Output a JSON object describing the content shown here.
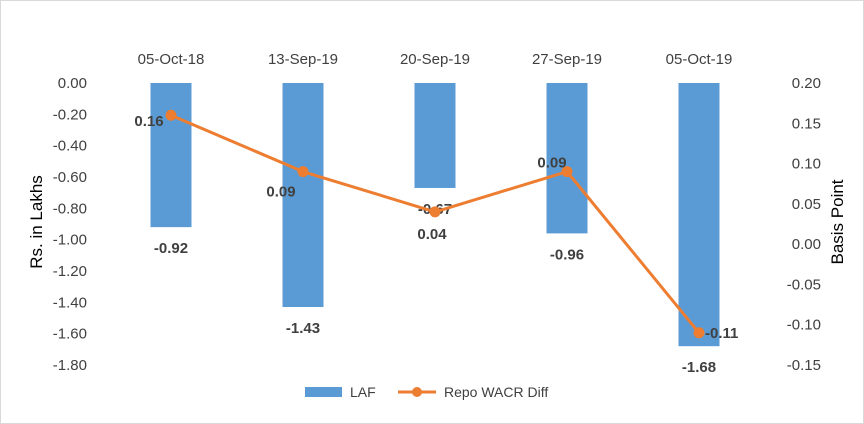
{
  "chart_data": {
    "type": "bar",
    "categories": [
      "05-Oct-18",
      "13-Sep-19",
      "20-Sep-19",
      "27-Sep-19",
      "05-Oct-19"
    ],
    "series": [
      {
        "name": "LAF",
        "type": "bar",
        "axis": "left",
        "values": [
          -0.92,
          -1.43,
          -0.67,
          -0.96,
          -1.68
        ],
        "labels": [
          "-0.92",
          "-1.43",
          "-0.67",
          "-0.96",
          "-1.68"
        ]
      },
      {
        "name": "Repo WACR Diff",
        "type": "line",
        "axis": "right",
        "values": [
          0.16,
          0.09,
          0.04,
          0.09,
          -0.11
        ],
        "labels": [
          "0.16",
          "0.09",
          "0.04",
          "0.09",
          "-0.11"
        ]
      }
    ],
    "ylabel": "Rs. in Lakhs",
    "y2label": "Basis Point",
    "ylim": [
      -1.8,
      0.0
    ],
    "y2lim": [
      -0.15,
      0.2
    ],
    "yticks": [
      "0.00",
      "-0.20",
      "-0.40",
      "-0.60",
      "-0.80",
      "-1.00",
      "-1.20",
      "-1.40",
      "-1.60",
      "-1.80"
    ],
    "y2ticks": [
      "0.20",
      "0.15",
      "0.10",
      "0.05",
      "0.00",
      "-0.05",
      "-0.10",
      "-0.15"
    ],
    "legend_position": "bottom",
    "grid": false,
    "colors": {
      "bar": "#5b9bd5",
      "line": "#ed7d31"
    }
  }
}
